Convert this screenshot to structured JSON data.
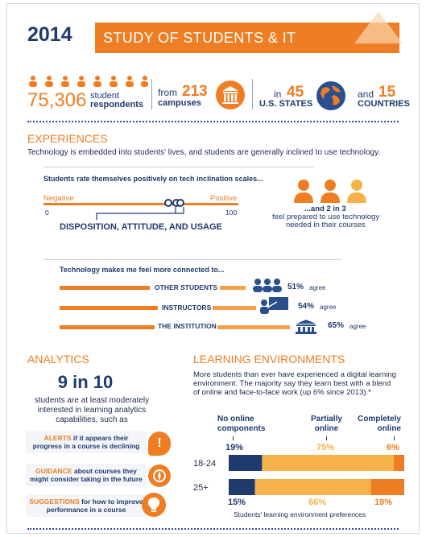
{
  "header": {
    "year": "2014",
    "title": "STUDY OF STUDENTS & IT"
  },
  "stats": {
    "respondents_number": "75,306",
    "respondents_label_1": "student",
    "respondents_label_2": "respondents",
    "campuses_prefix": "from",
    "campuses_number": "213",
    "campuses_label": "campuses",
    "states_prefix": "in",
    "states_number": "45",
    "states_label": "U.S. STATES",
    "countries_prefix": "and",
    "countries_number": "15",
    "countries_label": "COUNTRIES"
  },
  "experiences": {
    "heading": "EXPERIENCES",
    "intro": "Technology is embedded into students' lives, and students are generally inclined to use technology.",
    "scale_title": "Students rate themselves positively on tech inclination scales...",
    "scale_negative": "Negative",
    "scale_positive": "Positive",
    "scale_min": "0",
    "scale_max": "100",
    "scale_caption": "DISPOSITION, ATTITUDE, AND USAGE",
    "prepared_1": "...and 2 in 3",
    "prepared_2": "feel prepared to use technology",
    "prepared_3": "needed in their courses",
    "connected_title": "Technology makes me feel more connected to...",
    "connected": [
      {
        "label": "OTHER STUDENTS",
        "pct": "51%",
        "suffix": "agree",
        "value": 51
      },
      {
        "label": "INSTRUCTORS",
        "pct": "54%",
        "suffix": "agree",
        "value": 54
      },
      {
        "label": "THE INSTITUTION",
        "pct": "65%",
        "suffix": "agree",
        "value": 65
      }
    ]
  },
  "analytics": {
    "heading": "ANALYTICS",
    "big": "9 in 10",
    "text_1": "students are at least moderately",
    "text_2": "interested in learning analytics",
    "text_3": "capabilities, such as",
    "items": [
      {
        "tag": "ALERTS",
        "rest": " if it appears their",
        "line2": "progress in a course is declining"
      },
      {
        "tag": "GUIDANCE",
        "rest": " about courses they",
        "line2": "might consider taking in the future"
      },
      {
        "tag": "SUGGESTIONS",
        "rest": " for how to improve",
        "line2": "performance in a course"
      }
    ]
  },
  "learning": {
    "heading": "LEARNING ENVIRONMENTS",
    "intro_1": "More students than ever have experienced a digital learning",
    "intro_2": "environment. The majority say they learn best with a blend",
    "intro_3": "of online and face-to-face work (up 6% since 2013).*",
    "col_none_1": "No online",
    "col_none_2": "components",
    "col_partial_1": "Partially",
    "col_partial_2": "online",
    "col_complete_1": "Completely",
    "col_complete_2": "online",
    "caption": "Students' learning environment preferences",
    "colors": {
      "none": "#1f3a6e",
      "partial": "#f6b24a",
      "complete": "#ee7d23"
    }
  },
  "chart_data": {
    "type": "bar",
    "categories": [
      "18-24",
      "25+"
    ],
    "series": [
      {
        "name": "No online components",
        "values": [
          19,
          15
        ]
      },
      {
        "name": "Partially online",
        "values": [
          75,
          66
        ]
      },
      {
        "name": "Completely online",
        "values": [
          6,
          19
        ]
      }
    ],
    "labels_1824": [
      "19%",
      "75%",
      "6%"
    ],
    "labels_25": [
      "15%",
      "66%",
      "19%"
    ]
  }
}
